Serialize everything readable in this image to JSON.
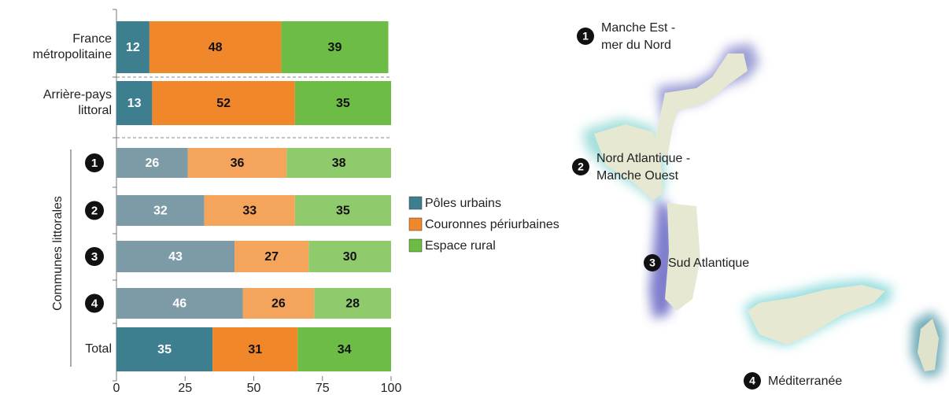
{
  "chart_data": {
    "type": "bar",
    "orientation": "horizontal",
    "stacked": true,
    "categories": [
      [
        "France",
        "métropolitaine"
      ],
      [
        "Arrière-pays",
        "littoral"
      ],
      "1",
      "2",
      "3",
      "4",
      [
        "Total"
      ]
    ],
    "group_label": "Communes littorales",
    "series": [
      {
        "name": "Pôles urbains",
        "color": "#3d7f8e",
        "colors": [
          "#3d7f8e",
          "#3d7f8e",
          "#7d9ba6",
          "#7d9ba6",
          "#7d9ba6",
          "#7d9ba6",
          "#3d7f8e"
        ],
        "values": [
          12,
          13,
          26,
          32,
          43,
          46,
          35
        ]
      },
      {
        "name": "Couronnes périurbaines",
        "color": "#f0872a",
        "colors": [
          "#f0872a",
          "#f0872a",
          "#f5a45c",
          "#f5a45c",
          "#f5a45c",
          "#f5a45c",
          "#f0872a"
        ],
        "values": [
          48,
          52,
          36,
          33,
          27,
          26,
          31
        ]
      },
      {
        "name": "Espace rural",
        "color": "#6cbc45",
        "colors": [
          "#6cbc45",
          "#6cbc45",
          "#8fcb6d",
          "#8fcb6d",
          "#8fcb6d",
          "#8fcb6d",
          "#6cbc45"
        ],
        "values": [
          39,
          35,
          38,
          35,
          30,
          28,
          34
        ]
      }
    ],
    "xlim": [
      0,
      100
    ],
    "xticks": [
      0,
      25,
      50,
      75,
      100
    ]
  },
  "map": {
    "regions": [
      {
        "number": "1",
        "label": [
          "Manche Est -",
          "mer du Nord"
        ]
      },
      {
        "number": "2",
        "label": [
          "Nord Atlantique -",
          "Manche Ouest"
        ]
      },
      {
        "number": "3",
        "label": [
          "Sud Atlantique"
        ]
      },
      {
        "number": "4",
        "label": [
          "Méditerranée"
        ]
      }
    ]
  }
}
